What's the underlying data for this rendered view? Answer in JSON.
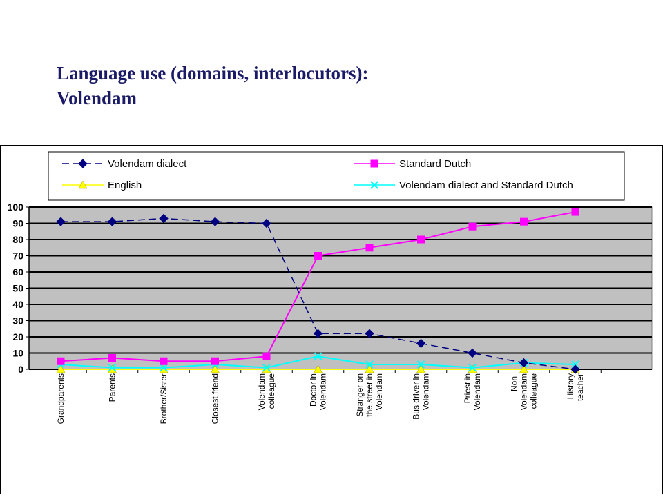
{
  "slide": {
    "title_line1": "Language use (domains, interlocutors):",
    "title_line2": "Volendam"
  },
  "chart_data": {
    "type": "line",
    "title": "",
    "xlabel": "",
    "ylabel": "",
    "ylim": [
      0,
      100
    ],
    "yticks": [
      0,
      10,
      20,
      30,
      40,
      50,
      60,
      70,
      80,
      90,
      100
    ],
    "grid": "horizontal",
    "plot_background": "#c0c0c0",
    "legend_position": "top",
    "categories": [
      [
        "Grandparents"
      ],
      [
        "Parents"
      ],
      [
        "Brother/Sister"
      ],
      [
        "Closest friend"
      ],
      [
        "Volendam",
        "colleague"
      ],
      [
        "Doctor in",
        "Volendam"
      ],
      [
        "Stranger on",
        "the street in",
        "Volendam"
      ],
      [
        "Bus driver in",
        "Volendam"
      ],
      [
        "Priest in",
        "Volendam"
      ],
      [
        "Non-",
        "Volendam",
        "colleague"
      ],
      [
        "History",
        "teacher"
      ]
    ],
    "series": [
      {
        "name": "Volendam dialect",
        "color": "#000080",
        "marker": "diamond",
        "dash": true,
        "values": [
          91,
          91,
          93,
          91,
          90,
          22,
          22,
          16,
          10,
          4,
          0
        ]
      },
      {
        "name": "Standard Dutch",
        "color": "#ff00ff",
        "marker": "square",
        "dash": false,
        "values": [
          5,
          7,
          5,
          5,
          8,
          70,
          75,
          80,
          88,
          91,
          97
        ]
      },
      {
        "name": "English",
        "color": "#ffff00",
        "marker": "triangle",
        "dash": false,
        "values": [
          0,
          0,
          0,
          0,
          0,
          0,
          0,
          0,
          0,
          0,
          0
        ]
      },
      {
        "name": "Volendam dialect and Standard Dutch",
        "color": "#00ffff",
        "marker": "x",
        "dash": false,
        "values": [
          3,
          1,
          1,
          3,
          1,
          8,
          3,
          3,
          1,
          4,
          3
        ]
      }
    ]
  }
}
